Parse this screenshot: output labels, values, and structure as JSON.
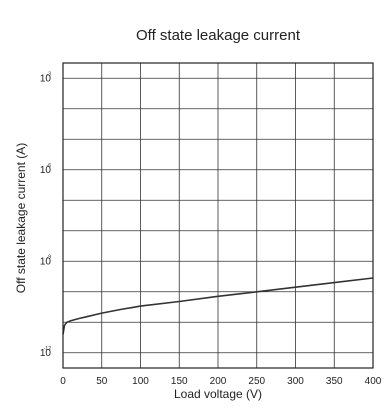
{
  "chart_data": {
    "type": "line",
    "title": "Off state leakage current",
    "xlabel": "Load voltage (V)",
    "ylabel": "Off state leakage current (A)",
    "xlim": [
      0,
      400
    ],
    "ylim_log10": [
      -12.5,
      -2.5
    ],
    "y_scale": "log",
    "grid": true,
    "x_ticks": [
      {
        "value": 0,
        "label": "0"
      },
      {
        "value": 50,
        "label": "50"
      },
      {
        "value": 100,
        "label": "100"
      },
      {
        "value": 150,
        "label": "150"
      },
      {
        "value": 200,
        "label": "200"
      },
      {
        "value": 250,
        "label": "250"
      },
      {
        "value": 300,
        "label": "300"
      },
      {
        "value": 350,
        "label": "350"
      },
      {
        "value": 400,
        "label": "400"
      }
    ],
    "y_ticks": [
      {
        "log10": -3,
        "base": "10",
        "exp": "-3"
      },
      {
        "log10": -6,
        "base": "10",
        "exp": "-6"
      },
      {
        "log10": -9,
        "base": "10",
        "exp": "-9"
      },
      {
        "log10": -12,
        "base": "10",
        "exp": "-12"
      }
    ],
    "y_gridlines_log10": [
      -12,
      -11,
      -10,
      -9,
      -8,
      -7,
      -6,
      -5,
      -4,
      -3
    ],
    "series": [
      {
        "color": "#333333",
        "x": [
          0,
          2,
          5,
          10,
          20,
          30,
          50,
          75,
          100,
          150,
          200,
          250,
          300,
          350,
          400
        ],
        "y_log10": [
          -11.4,
          -11.1,
          -11.0,
          -10.95,
          -10.88,
          -10.82,
          -10.7,
          -10.58,
          -10.47,
          -10.32,
          -10.15,
          -10.0,
          -9.85,
          -9.7,
          -9.55
        ]
      }
    ]
  }
}
